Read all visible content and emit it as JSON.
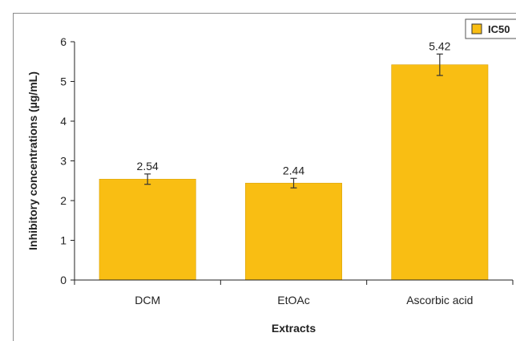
{
  "chart_data": {
    "type": "bar",
    "title": "",
    "xlabel": "Extracts",
    "ylabel": "Inhibitory concentrations (µg/mL)",
    "categories": [
      "DCM",
      "EtOAc",
      "Ascorbic acid"
    ],
    "series": [
      {
        "name": "IC50",
        "values": [
          2.54,
          2.44,
          5.42
        ],
        "error": [
          0.13,
          0.12,
          0.27
        ],
        "color": "#F9BE13"
      }
    ],
    "data_labels": [
      "2.54",
      "2.44",
      "5.42"
    ],
    "ylim": [
      0,
      6
    ],
    "yticks": [
      0,
      1,
      2,
      3,
      4,
      5,
      6
    ],
    "grid": false,
    "legend_position": "top-right"
  },
  "colors": {
    "bar_fill": "#F9BE13",
    "bar_stroke": "#D9A20B",
    "axis": "#222222"
  }
}
